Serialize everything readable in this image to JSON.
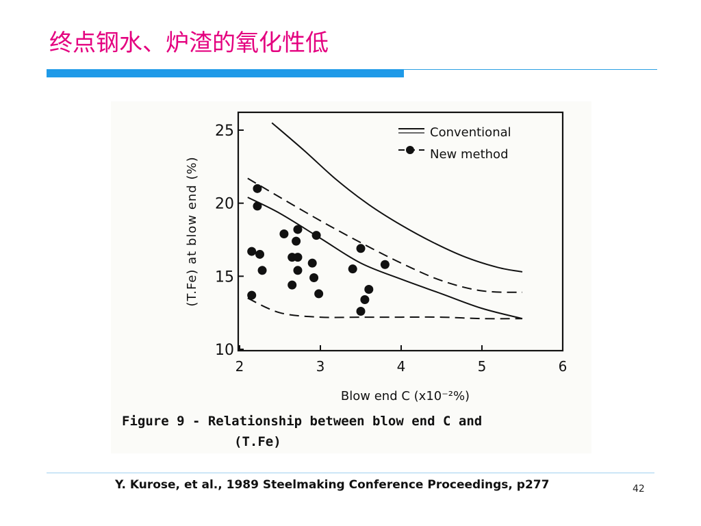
{
  "slide": {
    "title": "终点钢水、炉渣的氧化性低",
    "citation": "Y. Kurose, et al., 1989 Steelmaking Conference Proceedings, p277",
    "page_number": "42",
    "title_color": "#e4007f",
    "rule_color": "#1f9ae8"
  },
  "chart_data": {
    "type": "scatter",
    "ylabel": "(T.Fe) at blow end (%)",
    "xlabel": "Blow end C (x10⁻²%)",
    "caption_line1": "Figure 9 - Relationship between blow end C and",
    "caption_line2": "(T.Fe)",
    "xlim": [
      2,
      6
    ],
    "ylim": [
      10,
      26
    ],
    "x_ticks": [
      2,
      3,
      4,
      5,
      6
    ],
    "y_ticks": [
      10,
      15,
      20,
      25
    ],
    "grid": false,
    "legend_position": "top-right",
    "legend": [
      {
        "label": "Conventional",
        "style": "solid"
      },
      {
        "label": "New method",
        "style": "dashed-with-dots"
      }
    ],
    "series": [
      {
        "name": "Conventional",
        "kind": "line",
        "style": "solid",
        "x": [
          2.4,
          2.8,
          3.2,
          3.6,
          4.0,
          4.4,
          4.8,
          5.2,
          5.5
        ],
        "y": [
          25.5,
          23.6,
          21.6,
          19.9,
          18.5,
          17.3,
          16.3,
          15.6,
          15.3
        ]
      },
      {
        "name": "New method (upper)",
        "kind": "line",
        "style": "dashed",
        "x": [
          2.1,
          2.5,
          3.0,
          3.5,
          4.0,
          4.5,
          5.0,
          5.5
        ],
        "y": [
          21.7,
          20.4,
          18.8,
          17.3,
          15.9,
          14.7,
          14.0,
          13.9
        ]
      },
      {
        "name": "New method (middle)",
        "kind": "line",
        "style": "solid",
        "x": [
          2.1,
          2.5,
          3.0,
          3.5,
          4.0,
          4.5,
          5.0,
          5.5
        ],
        "y": [
          20.4,
          19.3,
          17.6,
          15.9,
          14.8,
          13.8,
          12.8,
          12.1
        ]
      },
      {
        "name": "New method (lower)",
        "kind": "line",
        "style": "dashed",
        "x": [
          2.1,
          2.5,
          3.0,
          3.5,
          4.0,
          4.5,
          5.0,
          5.5
        ],
        "y": [
          13.5,
          12.5,
          12.2,
          12.2,
          12.2,
          12.2,
          12.1,
          12.1
        ]
      },
      {
        "name": "New method",
        "kind": "points",
        "x": [
          2.22,
          2.22,
          2.15,
          2.25,
          2.28,
          2.15,
          2.55,
          2.72,
          2.7,
          2.65,
          2.72,
          2.72,
          2.65,
          2.95,
          2.9,
          2.92,
          2.98,
          3.4,
          3.5,
          3.8,
          3.5,
          3.55,
          3.6
        ],
        "y": [
          21.0,
          19.8,
          16.7,
          16.5,
          15.4,
          13.7,
          17.9,
          18.2,
          17.4,
          16.3,
          16.3,
          15.4,
          14.4,
          17.8,
          15.9,
          14.9,
          13.8,
          15.5,
          16.9,
          15.8,
          12.6,
          13.4,
          14.1
        ]
      }
    ]
  }
}
